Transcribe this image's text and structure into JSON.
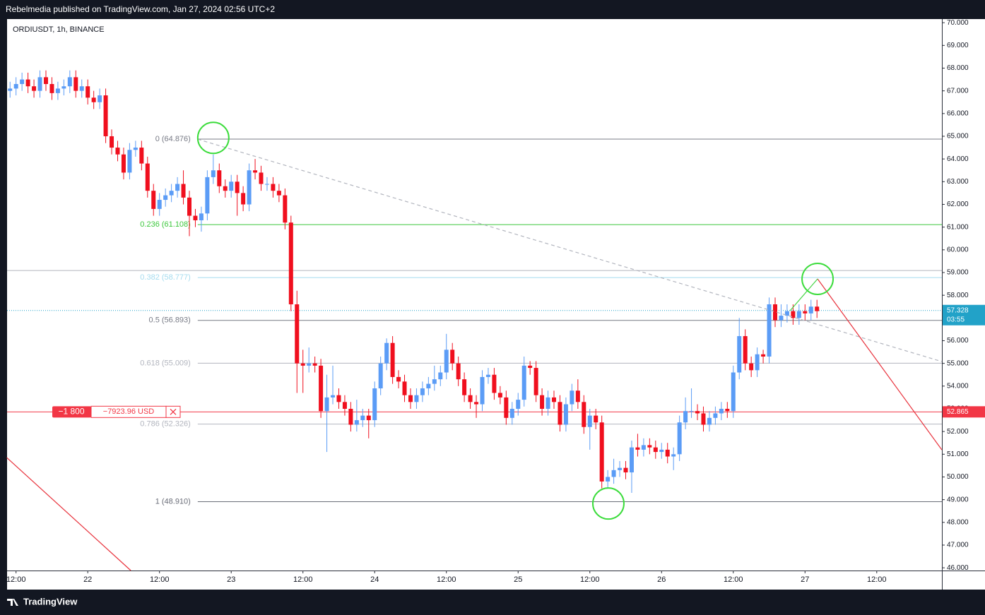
{
  "header": {
    "publisher": "Rebelmedia published on TradingView.com, Jan 27, 2024 02:56 UTC+2"
  },
  "footer": {
    "brand": "TradingView"
  },
  "chart_data": {
    "type": "candlestick",
    "symbol": "ORDIUSDT, 1h, BINANCE",
    "open": [
      67.0,
      67.1,
      67.3,
      67.5,
      67.2,
      67.0,
      67.6,
      67.3,
      66.9,
      67.1,
      67.2,
      67.6,
      67.0,
      67.2,
      66.7,
      66.5,
      66.8,
      65.0,
      64.5,
      64.2,
      63.4,
      64.4,
      64.5,
      63.8,
      62.6,
      61.8,
      62.2,
      62.4,
      62.6,
      62.9,
      62.3,
      61.5,
      61.3,
      61.6,
      63.2,
      63.5,
      62.8,
      62.6,
      63.0,
      62.5,
      62.0,
      63.5,
      63.4,
      62.9,
      62.9,
      62.6,
      62.4,
      61.2,
      57.6,
      55.0,
      54.9,
      55.0,
      54.9,
      52.9,
      53.5,
      53.6,
      53.3,
      53.0,
      52.3,
      52.5,
      52.7,
      52.5,
      53.9,
      55.0,
      55.9,
      54.4,
      54.2,
      53.6,
      53.3,
      53.6,
      53.9,
      54.1,
      54.3,
      54.6,
      55.6,
      55.0,
      54.3,
      53.6,
      53.3,
      53.2,
      54.4,
      54.5,
      53.7,
      53.5,
      52.6,
      53.0,
      53.4,
      54.9,
      54.8,
      53.6,
      53.0,
      53.5,
      53.3,
      52.3,
      53.2,
      53.8,
      53.3,
      52.2,
      52.7,
      52.4,
      49.8,
      50.0,
      50.3,
      50.4,
      50.2,
      51.3,
      51.2,
      51.4,
      51.3,
      51.1,
      51.2,
      50.9,
      51.0,
      52.4,
      52.9,
      52.9,
      52.8,
      52.3,
      52.6,
      52.8,
      53.0,
      52.9,
      54.6,
      56.2,
      55.0,
      54.7,
      55.4,
      55.3,
      57.6,
      56.9,
      57.1,
      57.3,
      57.0,
      57.3,
      57.2,
      57.5
    ],
    "high": [
      67.4,
      67.6,
      67.8,
      67.8,
      67.5,
      67.9,
      67.9,
      67.6,
      67.4,
      67.5,
      67.9,
      67.9,
      67.5,
      67.5,
      67.0,
      67.1,
      67.1,
      65.3,
      64.8,
      64.5,
      64.7,
      64.8,
      64.8,
      64.1,
      62.9,
      62.5,
      62.7,
      62.9,
      63.2,
      63.5,
      62.6,
      61.8,
      61.9,
      63.5,
      64.2,
      63.8,
      63.1,
      63.3,
      63.3,
      62.8,
      63.8,
      64.0,
      63.7,
      63.2,
      63.2,
      62.9,
      62.7,
      61.5,
      58.2,
      55.6,
      55.7,
      55.3,
      55.2,
      54.5,
      54.9,
      53.9,
      53.6,
      53.3,
      53.4,
      53.0,
      53.0,
      54.2,
      55.3,
      56.1,
      56.2,
      54.7,
      54.5,
      53.9,
      53.9,
      54.2,
      54.4,
      54.9,
      54.9,
      56.3,
      55.9,
      55.3,
      54.6,
      53.9,
      53.6,
      54.7,
      54.8,
      54.8,
      54.0,
      53.8,
      53.3,
      53.7,
      55.3,
      55.1,
      55.1,
      53.9,
      53.8,
      53.8,
      53.6,
      53.5,
      54.1,
      54.3,
      53.6,
      53.0,
      53.0,
      52.7,
      50.3,
      50.8,
      50.7,
      50.7,
      51.6,
      51.9,
      51.7,
      51.7,
      51.6,
      51.5,
      51.5,
      51.3,
      52.7,
      53.5,
      53.9,
      53.2,
      53.1,
      52.9,
      53.1,
      53.3,
      53.3,
      54.9,
      57.0,
      56.5,
      55.3,
      55.7,
      55.6,
      57.9,
      57.9,
      57.6,
      57.6,
      57.6,
      57.6,
      57.6,
      57.8,
      57.8
    ],
    "low": [
      66.7,
      66.8,
      67.0,
      66.9,
      66.7,
      66.7,
      67.0,
      66.6,
      66.6,
      66.8,
      66.9,
      66.7,
      66.7,
      66.4,
      66.2,
      66.2,
      64.7,
      64.2,
      63.9,
      63.1,
      63.1,
      64.1,
      63.5,
      62.3,
      61.5,
      61.5,
      61.9,
      62.1,
      62.3,
      62.0,
      60.6,
      61.0,
      60.8,
      61.3,
      62.9,
      62.5,
      62.3,
      62.3,
      61.5,
      61.7,
      61.7,
      63.1,
      62.6,
      62.6,
      62.3,
      62.1,
      60.9,
      57.3,
      53.7,
      53.7,
      54.6,
      54.6,
      52.6,
      51.1,
      53.2,
      53.0,
      52.7,
      52.0,
      52.0,
      52.2,
      51.7,
      52.2,
      53.6,
      54.7,
      54.1,
      53.9,
      53.3,
      53.0,
      53.0,
      53.3,
      53.6,
      53.8,
      54.0,
      54.3,
      54.7,
      54.0,
      53.3,
      53.0,
      52.6,
      52.9,
      54.1,
      53.4,
      53.2,
      52.3,
      52.3,
      52.7,
      53.1,
      54.5,
      53.3,
      52.7,
      52.7,
      53.0,
      52.0,
      52.0,
      52.9,
      53.0,
      51.9,
      51.2,
      52.1,
      49.5,
      49.5,
      49.7,
      50.0,
      49.9,
      49.3,
      50.9,
      50.9,
      51.0,
      50.8,
      50.8,
      50.6,
      50.3,
      50.7,
      52.1,
      52.6,
      52.5,
      52.0,
      52.0,
      52.3,
      52.5,
      52.6,
      52.6,
      54.3,
      54.7,
      54.4,
      54.4,
      55.0,
      55.0,
      56.6,
      56.6,
      56.8,
      56.7,
      56.7,
      56.9,
      56.9,
      57.0
    ],
    "close": [
      67.1,
      67.3,
      67.5,
      67.2,
      67.0,
      67.6,
      67.3,
      66.9,
      67.1,
      67.2,
      67.6,
      67.0,
      67.2,
      66.7,
      66.5,
      66.8,
      65.0,
      64.5,
      64.2,
      63.4,
      64.4,
      64.5,
      63.8,
      62.6,
      61.8,
      62.2,
      62.4,
      62.6,
      62.9,
      62.3,
      61.5,
      61.3,
      61.6,
      63.2,
      63.5,
      62.8,
      62.6,
      63.0,
      62.5,
      62.0,
      63.5,
      63.4,
      62.9,
      62.9,
      62.6,
      62.4,
      61.2,
      57.6,
      55.0,
      54.9,
      55.0,
      54.9,
      52.9,
      53.5,
      53.6,
      53.3,
      53.0,
      52.3,
      52.5,
      52.7,
      52.5,
      53.9,
      55.0,
      55.9,
      54.4,
      54.2,
      53.6,
      53.3,
      53.6,
      53.9,
      54.1,
      54.3,
      54.6,
      55.6,
      55.0,
      54.3,
      53.6,
      53.3,
      53.2,
      54.4,
      54.5,
      53.7,
      53.5,
      52.6,
      53.0,
      53.4,
      54.9,
      54.8,
      53.6,
      53.0,
      53.5,
      53.3,
      52.3,
      53.2,
      53.8,
      53.3,
      52.2,
      52.7,
      52.4,
      49.8,
      50.0,
      50.3,
      50.4,
      50.2,
      51.3,
      51.2,
      51.4,
      51.3,
      51.1,
      51.2,
      50.9,
      51.0,
      52.4,
      52.9,
      52.9,
      52.8,
      52.3,
      52.6,
      52.8,
      53.0,
      52.9,
      54.6,
      56.2,
      55.0,
      54.7,
      55.4,
      55.3,
      57.6,
      56.9,
      57.1,
      57.3,
      57.0,
      57.3,
      57.2,
      57.5,
      57.3
    ],
    "up_color": "#5b9cf6",
    "down_color": "#f00f1e",
    "xlim": [
      -0.5,
      155.9
    ],
    "xticks": [
      {
        "value": 1,
        "label": "12:00"
      },
      {
        "value": 13,
        "label": "22"
      },
      {
        "value": 25,
        "label": "12:00"
      },
      {
        "value": 37,
        "label": "23"
      },
      {
        "value": 49,
        "label": "12:00"
      },
      {
        "value": 61,
        "label": "24"
      },
      {
        "value": 73,
        "label": "12:00"
      },
      {
        "value": 85,
        "label": "25"
      },
      {
        "value": 97,
        "label": "12:00"
      },
      {
        "value": 109,
        "label": "26"
      },
      {
        "value": 121,
        "label": "12:00"
      },
      {
        "value": 133,
        "label": "27"
      },
      {
        "value": 145,
        "label": "12:00"
      }
    ],
    "ylim": [
      45.88,
      70.16
    ],
    "yticks": [
      {
        "value": 70,
        "label": "70.000"
      },
      {
        "value": 69,
        "label": "69.000"
      },
      {
        "value": 68,
        "label": "68.000"
      },
      {
        "value": 67,
        "label": "67.000"
      },
      {
        "value": 66,
        "label": "66.000"
      },
      {
        "value": 65,
        "label": "65.000"
      },
      {
        "value": 64,
        "label": "64.000"
      },
      {
        "value": 63,
        "label": "63.000"
      },
      {
        "value": 62,
        "label": "62.000"
      },
      {
        "value": 61,
        "label": "61.000"
      },
      {
        "value": 60,
        "label": "60.000"
      },
      {
        "value": 59,
        "label": "59.000"
      },
      {
        "value": 58,
        "label": "58.000"
      },
      {
        "value": 57,
        "label": "57.000"
      },
      {
        "value": 56,
        "label": "56.000"
      },
      {
        "value": 55,
        "label": "55.000"
      },
      {
        "value": 54,
        "label": "54.000"
      },
      {
        "value": 53,
        "label": "53.000"
      },
      {
        "value": 52,
        "label": "52.000"
      },
      {
        "value": 51,
        "label": "51.000"
      },
      {
        "value": 50,
        "label": "50.000"
      },
      {
        "value": 49,
        "label": "49.000"
      },
      {
        "value": 48,
        "label": "48.000"
      },
      {
        "value": 47,
        "label": "47.000"
      },
      {
        "value": 46,
        "label": "46.000"
      }
    ],
    "fib_levels": [
      {
        "label": "0 (64.876)",
        "value": 64.876,
        "color": "#787b86"
      },
      {
        "label": "0.236 (61.108)",
        "value": 61.108,
        "color": "#3cc83c"
      },
      {
        "label": "0.382 (58.777)",
        "value": 58.777,
        "color": "#a5dcef"
      },
      {
        "label": "0.5 (56.893)",
        "value": 56.893,
        "color": "#787b86"
      },
      {
        "label": "0.618 (55.009)",
        "value": 55.009,
        "color": "#b2b5be"
      },
      {
        "label": "0.786 (52.326)",
        "value": 52.326,
        "color": "#b2b5be"
      },
      {
        "label": "1 (48.910)",
        "value": 48.91,
        "color": "#6a6d78"
      }
    ],
    "horizontal_lines": [
      59.09
    ],
    "trend_lines": [
      {
        "color": "#b2b5be",
        "dashed": true,
        "points": [
          [
            31.4,
            64.87
          ],
          [
            155.9,
            55.08
          ]
        ]
      },
      {
        "color": "#e8323c",
        "dashed": false,
        "points": [
          [
            -0.54,
            50.85
          ],
          [
            20.2,
            45.88
          ]
        ]
      },
      {
        "color": "#e8323c",
        "dashed": false,
        "points": [
          [
            135.1,
            58.72
          ],
          [
            155.9,
            51.19
          ]
        ]
      },
      {
        "color": "#44d444",
        "dashed": false,
        "points": [
          [
            130.5,
            57.32
          ],
          [
            135.1,
            58.72
          ]
        ]
      }
    ],
    "circles": [
      {
        "color": "#3cdc3c",
        "center": [
          34.0,
          64.93
        ]
      },
      {
        "color": "#3cdc3c",
        "center": [
          135.1,
          58.72
        ]
      },
      {
        "color": "#3cdc3c",
        "center": [
          100.1,
          48.83
        ]
      }
    ],
    "last_price": 57.328,
    "countdown": "03:55",
    "last_price_color": "#22a2c8",
    "position": {
      "quantity": "−1 800",
      "pnl": "−7923.96 USD",
      "price": 52.865,
      "color": "#f23645"
    }
  }
}
